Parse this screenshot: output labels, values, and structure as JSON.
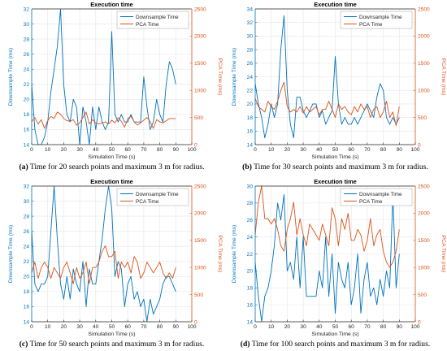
{
  "figure": {
    "colors": {
      "downsample": "#0072BD",
      "pca": "#D95319",
      "axis": "#262626",
      "grid": "#E6E6E6"
    },
    "captions": [
      {
        "label": "(a)",
        "text": " Time for 20 search points and maximum 3 m for radius."
      },
      {
        "label": "(b)",
        "text": " Time for 30 search points and maximum 3 m for radius."
      },
      {
        "label": "(c)",
        "text": " Time for 50 search points and maximum 3 m for radius."
      },
      {
        "label": "(d)",
        "text": " Time for 100 search points and maximum 3 m for radius."
      }
    ]
  },
  "chart_data": [
    {
      "type": "line",
      "title": "Execution time",
      "xlabel": "Simulation Time (s)",
      "ylabel": "Downsample Time (ms)",
      "ylabel_right": "PCA Time (ms)",
      "xlim": [
        0,
        100
      ],
      "ylim": [
        14,
        32
      ],
      "ylim_right": [
        0,
        2500
      ],
      "x_ticks": [
        0,
        10,
        20,
        30,
        40,
        50,
        60,
        70,
        80,
        90,
        100
      ],
      "y_ticks": [
        14,
        16,
        18,
        20,
        22,
        24,
        26,
        28,
        30,
        32
      ],
      "y_ticks_right": [
        0,
        500,
        1000,
        1500,
        2000,
        2500
      ],
      "legend": [
        "Downsample Time",
        "PCA Time"
      ],
      "legend_position": "top-right",
      "grid": true,
      "series": [
        {
          "name": "Downsample Time",
          "axis": "left",
          "x": [
            0,
            2,
            4,
            6,
            8,
            10,
            12,
            14,
            16,
            18,
            20,
            22,
            24,
            26,
            28,
            30,
            32,
            34,
            36,
            38,
            40,
            42,
            44,
            46,
            48,
            50,
            52,
            54,
            56,
            58,
            60,
            62,
            64,
            66,
            68,
            70,
            72,
            74,
            76,
            78,
            80,
            82,
            84,
            86,
            88,
            90
          ],
          "y": [
            22,
            16,
            14,
            14,
            15,
            17,
            21,
            24,
            27,
            32,
            22,
            18,
            17,
            20,
            19,
            14,
            19,
            17,
            14,
            19,
            16,
            19,
            17,
            16,
            17,
            29,
            18,
            17,
            18,
            17,
            17,
            18,
            17,
            17,
            17,
            23,
            19,
            16,
            17,
            20,
            18,
            17,
            22,
            25,
            24,
            22
          ]
        },
        {
          "name": "PCA Time",
          "axis": "right",
          "x": [
            0,
            2,
            4,
            6,
            8,
            10,
            12,
            14,
            16,
            18,
            20,
            22,
            24,
            26,
            28,
            30,
            32,
            34,
            36,
            38,
            40,
            42,
            44,
            46,
            48,
            50,
            52,
            54,
            56,
            58,
            60,
            62,
            64,
            66,
            68,
            70,
            72,
            74,
            76,
            78,
            80,
            82,
            84,
            86,
            88,
            90
          ],
          "y": [
            420,
            500,
            380,
            460,
            300,
            440,
            520,
            480,
            600,
            560,
            480,
            440,
            430,
            460,
            360,
            400,
            500,
            600,
            380,
            460,
            400,
            380,
            400,
            420,
            380,
            450,
            400,
            500,
            430,
            320,
            480,
            520,
            420,
            360,
            400,
            450,
            500,
            420,
            300,
            460,
            420,
            400,
            440,
            480,
            480,
            480
          ]
        }
      ]
    },
    {
      "type": "line",
      "title": "Execution time",
      "xlabel": "Simulation Time (s)",
      "ylabel": "Downsample Time (ms)",
      "ylabel_right": "PCA Time (ms)",
      "xlim": [
        0,
        100
      ],
      "ylim": [
        14,
        34
      ],
      "ylim_right": [
        0,
        2500
      ],
      "x_ticks": [
        0,
        10,
        20,
        30,
        40,
        50,
        60,
        70,
        80,
        90,
        100
      ],
      "y_ticks": [
        14,
        16,
        18,
        20,
        22,
        24,
        26,
        28,
        30,
        32,
        34
      ],
      "y_ticks_right": [
        0,
        500,
        1000,
        1500,
        2000,
        2500
      ],
      "legend": [
        "Downsample Time",
        "PCA Time"
      ],
      "legend_position": "top-right",
      "grid": true,
      "series": [
        {
          "name": "Downsample Time",
          "axis": "left",
          "x": [
            0,
            2,
            4,
            6,
            8,
            10,
            12,
            14,
            16,
            18,
            20,
            22,
            24,
            26,
            28,
            30,
            32,
            34,
            36,
            38,
            40,
            42,
            44,
            46,
            48,
            50,
            52,
            54,
            56,
            58,
            60,
            62,
            64,
            66,
            68,
            70,
            72,
            74,
            76,
            78,
            80,
            82,
            84,
            86,
            88,
            90
          ],
          "y": [
            23,
            20,
            18,
            15,
            17,
            20,
            18,
            20,
            28,
            33,
            22,
            17,
            15,
            21,
            21,
            19,
            18,
            19,
            20,
            20,
            18,
            19,
            17,
            18,
            19,
            27,
            20,
            17,
            18,
            17,
            17,
            18,
            17,
            18,
            19,
            20,
            19,
            18,
            21,
            23,
            22,
            18,
            17,
            18,
            17,
            18
          ]
        },
        {
          "name": "PCA Time",
          "axis": "right",
          "x": [
            0,
            2,
            4,
            6,
            8,
            10,
            12,
            14,
            16,
            18,
            20,
            22,
            24,
            26,
            28,
            30,
            32,
            34,
            36,
            38,
            40,
            42,
            44,
            46,
            48,
            50,
            52,
            54,
            56,
            58,
            60,
            62,
            64,
            66,
            68,
            70,
            72,
            74,
            76,
            78,
            80,
            82,
            84,
            86,
            88,
            90
          ],
          "y": [
            850,
            700,
            650,
            600,
            800,
            700,
            650,
            800,
            1000,
            1150,
            700,
            600,
            650,
            600,
            700,
            580,
            700,
            600,
            650,
            700,
            550,
            650,
            650,
            800,
            650,
            500,
            750,
            650,
            700,
            600,
            550,
            700,
            600,
            750,
            650,
            700,
            500,
            650,
            700,
            500,
            600,
            800,
            500,
            600,
            350,
            700
          ]
        }
      ]
    },
    {
      "type": "line",
      "title": "Execution time",
      "xlabel": "Simulation Time (s)",
      "ylabel": "Downsample Time (ms)",
      "ylabel_right": "PCA Time (ms)",
      "xlim": [
        0,
        100
      ],
      "ylim": [
        14,
        32
      ],
      "ylim_right": [
        0,
        2500
      ],
      "x_ticks": [
        0,
        10,
        20,
        30,
        40,
        50,
        60,
        70,
        80,
        90,
        100
      ],
      "y_ticks": [
        14,
        16,
        18,
        20,
        22,
        24,
        26,
        28,
        30,
        32
      ],
      "y_ticks_right": [
        0,
        500,
        1000,
        1500,
        2000,
        2500
      ],
      "legend": [
        "Downsample Time",
        "PCA Time"
      ],
      "legend_position": "top-right",
      "grid": true,
      "series": [
        {
          "name": "Downsample Time",
          "axis": "left",
          "x": [
            0,
            2,
            4,
            6,
            8,
            10,
            12,
            14,
            16,
            18,
            20,
            22,
            24,
            26,
            28,
            30,
            32,
            34,
            36,
            38,
            40,
            42,
            44,
            46,
            48,
            50,
            52,
            54,
            56,
            58,
            60,
            62,
            64,
            66,
            68,
            70,
            72,
            74,
            76,
            78,
            80,
            82,
            84,
            86,
            88,
            90
          ],
          "y": [
            26,
            19,
            18,
            19,
            19,
            20,
            26,
            32,
            25,
            19,
            17,
            20,
            17,
            21,
            19,
            18,
            22,
            16,
            21,
            19,
            19,
            22,
            25,
            29,
            32,
            29,
            20,
            22,
            21,
            16,
            19,
            20,
            17,
            18,
            16,
            17,
            14,
            17,
            15,
            16,
            17,
            19,
            20,
            20,
            19,
            18
          ]
        },
        {
          "name": "PCA Time",
          "axis": "right",
          "x": [
            0,
            2,
            4,
            6,
            8,
            10,
            12,
            14,
            16,
            18,
            20,
            22,
            24,
            26,
            28,
            30,
            32,
            34,
            36,
            38,
            40,
            42,
            44,
            46,
            48,
            50,
            52,
            54,
            56,
            58,
            60,
            62,
            64,
            66,
            68,
            70,
            72,
            74,
            76,
            78,
            80,
            82,
            84,
            86,
            88,
            90
          ],
          "y": [
            900,
            1100,
            800,
            1000,
            1100,
            1000,
            800,
            1000,
            900,
            800,
            1000,
            1100,
            900,
            700,
            1000,
            800,
            900,
            1100,
            700,
            1000,
            1000,
            1100,
            1300,
            1400,
            1200,
            1200,
            1300,
            800,
            1100,
            1000,
            1100,
            900,
            1200,
            1100,
            800,
            900,
            1100,
            1000,
            900,
            1000,
            1100,
            900,
            800,
            900,
            800,
            1000
          ]
        }
      ]
    },
    {
      "type": "line",
      "title": "Execution time",
      "xlabel": "Simulation Time (s)",
      "ylabel": "Downsample Time (ms)",
      "ylabel_right": "PCA Time (ms)",
      "xlim": [
        0,
        100
      ],
      "ylim": [
        14,
        30
      ],
      "ylim_right": [
        0,
        2500
      ],
      "x_ticks": [
        0,
        10,
        20,
        30,
        40,
        50,
        60,
        70,
        80,
        90,
        100
      ],
      "y_ticks": [
        14,
        16,
        18,
        20,
        22,
        24,
        26,
        28,
        30
      ],
      "y_ticks_right": [
        0,
        500,
        1000,
        1500,
        2000,
        2500
      ],
      "legend": [
        "Downsample Time",
        "PCA Time"
      ],
      "legend_position": "top-right",
      "grid": true,
      "series": [
        {
          "name": "Downsample Time",
          "axis": "left",
          "x": [
            0,
            2,
            4,
            6,
            8,
            10,
            12,
            14,
            16,
            18,
            20,
            22,
            24,
            26,
            28,
            30,
            32,
            34,
            36,
            38,
            40,
            42,
            44,
            46,
            48,
            50,
            52,
            54,
            56,
            58,
            60,
            62,
            64,
            66,
            68,
            70,
            72,
            74,
            76,
            78,
            80,
            82,
            84,
            86,
            88,
            90
          ],
          "y": [
            21,
            17,
            14,
            17,
            18,
            20,
            23,
            28,
            26,
            29,
            20,
            21,
            19,
            24,
            18,
            24,
            17,
            17,
            17,
            17,
            20,
            18,
            24,
            17,
            22,
            15,
            21,
            19,
            18,
            21,
            16,
            18,
            22,
            15,
            19,
            21,
            17,
            18,
            16,
            19,
            17,
            20,
            18,
            29,
            18,
            22
          ]
        },
        {
          "name": "PCA Time",
          "axis": "right",
          "x": [
            0,
            2,
            4,
            6,
            8,
            10,
            12,
            14,
            16,
            18,
            20,
            22,
            24,
            26,
            28,
            30,
            32,
            34,
            36,
            38,
            40,
            42,
            44,
            46,
            48,
            50,
            52,
            54,
            56,
            58,
            60,
            62,
            64,
            66,
            68,
            70,
            72,
            74,
            76,
            78,
            80,
            82,
            84,
            86,
            88,
            90
          ],
          "y": [
            1600,
            2200,
            2500,
            1900,
            1900,
            1800,
            1900,
            1700,
            1400,
            1300,
            1700,
            1900,
            2200,
            1600,
            1900,
            1600,
            1400,
            1800,
            1700,
            1600,
            1500,
            1800,
            1600,
            1400,
            2100,
            1900,
            1400,
            1900,
            1700,
            2000,
            1500,
            1500,
            1700,
            1600,
            1300,
            1500,
            1900,
            1400,
            1600,
            1700,
            1300,
            1100,
            1000,
            1100,
            1300,
            1700
          ]
        }
      ]
    }
  ]
}
